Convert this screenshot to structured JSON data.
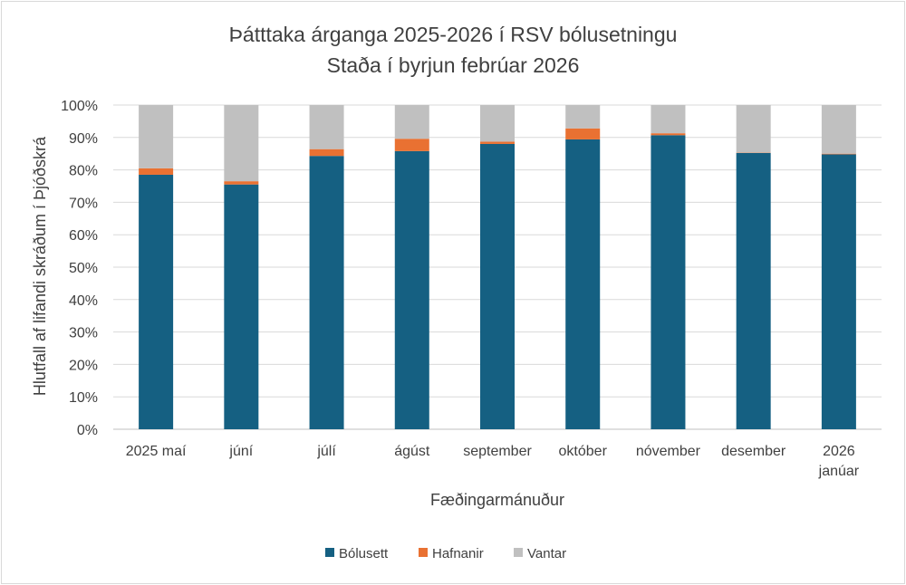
{
  "chart_data": {
    "type": "bar",
    "stacked": true,
    "title": "Þátttaka árganga 2025-2026 í RSV bólusetningu",
    "subtitle": "Staða í byrjun febrúar 2026",
    "xlabel": "Fæðingarmánuður",
    "ylabel": "Hlutfall af lifandi skráðum í Þjóðskrá",
    "ylim": [
      0,
      100
    ],
    "yticks": [
      "0%",
      "10%",
      "20%",
      "30%",
      "40%",
      "50%",
      "60%",
      "70%",
      "80%",
      "90%",
      "100%"
    ],
    "categories": [
      [
        "2025 maí"
      ],
      [
        "júní"
      ],
      [
        "júlí"
      ],
      [
        "ágúst"
      ],
      [
        "september"
      ],
      [
        "október"
      ],
      [
        "nóvember"
      ],
      [
        "desember"
      ],
      [
        "2026",
        "janúar"
      ]
    ],
    "series": [
      {
        "name": "Bólusett",
        "color": "#156082",
        "values": [
          78.5,
          75.5,
          84.3,
          85.8,
          88.0,
          89.4,
          90.7,
          85.2,
          84.8
        ]
      },
      {
        "name": "Hafnanir",
        "color": "#e97132",
        "values": [
          2.0,
          1.0,
          2.1,
          3.8,
          0.7,
          3.4,
          0.6,
          0.1,
          0.2
        ]
      },
      {
        "name": "Vantar",
        "color": "#c0c0c0",
        "values": [
          19.5,
          23.5,
          13.6,
          10.4,
          11.3,
          7.2,
          8.7,
          14.7,
          15.0
        ]
      }
    ],
    "grid": true,
    "legend_position": "bottom"
  }
}
